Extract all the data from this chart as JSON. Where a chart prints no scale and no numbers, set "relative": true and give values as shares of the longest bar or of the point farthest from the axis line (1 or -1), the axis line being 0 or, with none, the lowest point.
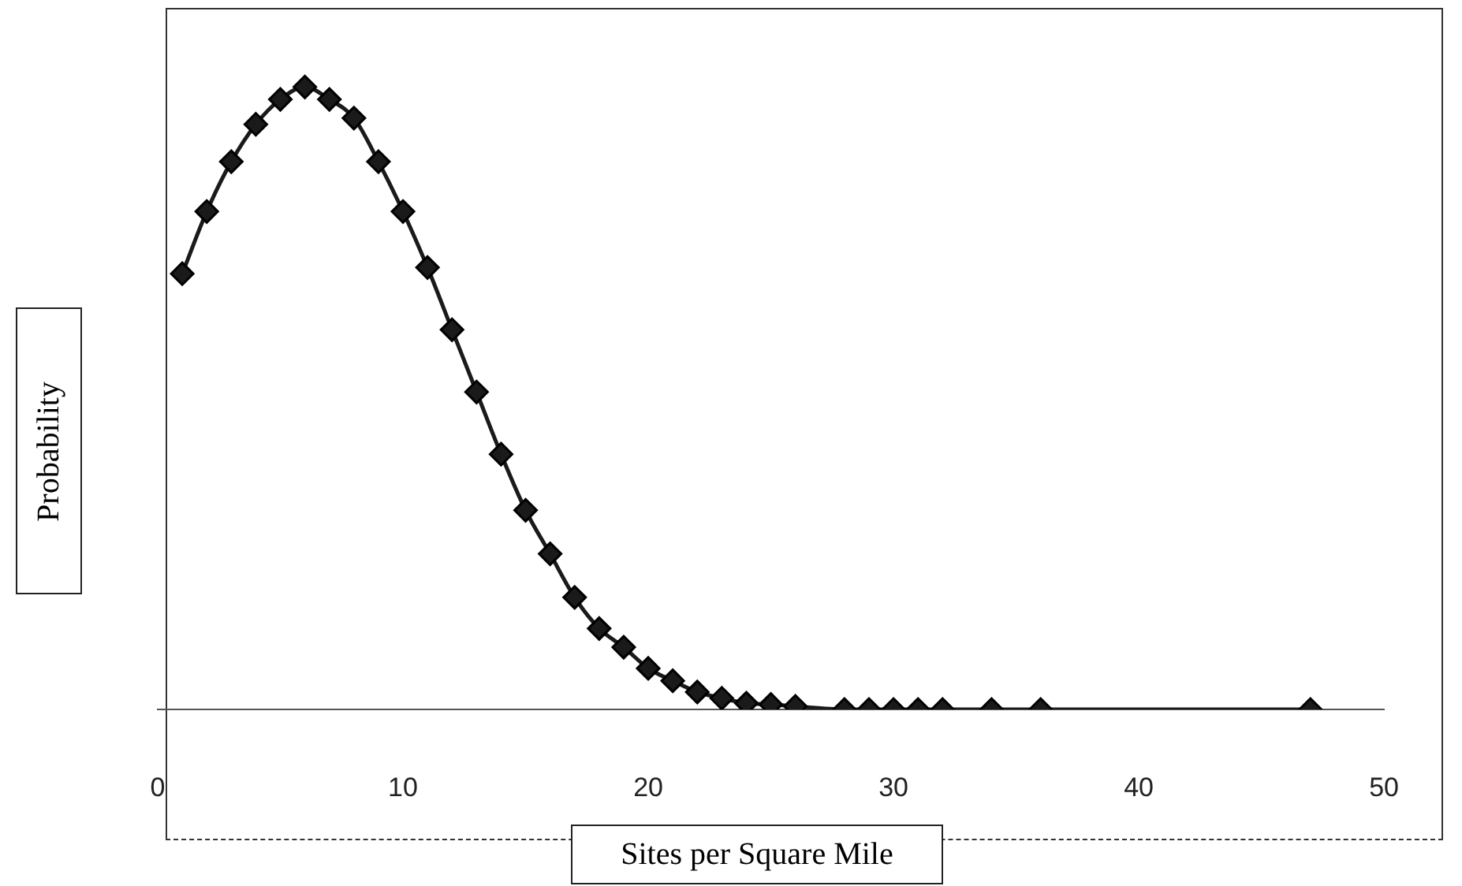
{
  "chart_data": {
    "type": "line",
    "xlabel": "Sites per Square Mile",
    "ylabel": "Probability",
    "relative": true,
    "marker": "diamond",
    "line_style": "solid",
    "xlim": [
      0,
      50
    ],
    "xticks": [
      0,
      10,
      20,
      30,
      40,
      50
    ],
    "series": [
      {
        "color": "#1a1a1a",
        "x": [
          1,
          2,
          3,
          4,
          5,
          6,
          7,
          8,
          9,
          10,
          11,
          12,
          13,
          14,
          15,
          16,
          17,
          18,
          19,
          20,
          21,
          22,
          23,
          24,
          25,
          26,
          28,
          29,
          30,
          31,
          32,
          34,
          36,
          47
        ],
        "values": [
          0.7,
          0.8,
          0.88,
          0.94,
          0.98,
          1,
          0.98,
          0.95,
          0.88,
          0.8,
          0.71,
          0.61,
          0.51,
          0.41,
          0.32,
          0.25,
          0.18,
          0.13,
          0.1,
          0.066,
          0.046,
          0.028,
          0.018,
          0.01,
          0.008,
          0.005,
          0,
          0,
          0,
          0,
          0,
          0,
          0,
          0
        ]
      }
    ]
  }
}
